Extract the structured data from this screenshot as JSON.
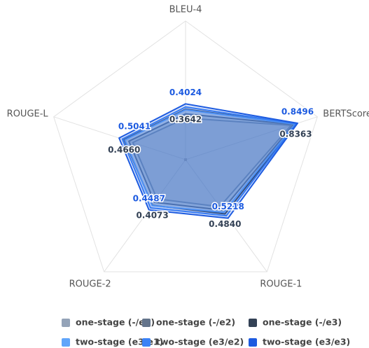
{
  "chart_data": {
    "type": "radar",
    "categories": [
      "BLEU-4",
      "BERTScore",
      "ROUGE-1",
      "ROUGE-2",
      "ROUGE-L"
    ],
    "rlim": [
      0,
      1
    ],
    "series": [
      {
        "name": "one-stage (-/e1)",
        "color": "#94a3b8",
        "values": [
          0.3,
          0.8,
          0.42,
          0.35,
          0.4
        ]
      },
      {
        "name": "one-stage (-/e2)",
        "color": "#64748b",
        "values": [
          0.33,
          0.82,
          0.45,
          0.38,
          0.43
        ]
      },
      {
        "name": "one-stage (-/e3)",
        "color": "#334155",
        "values": [
          0.3642,
          0.8363,
          0.484,
          0.4073,
          0.466
        ],
        "value_labels": [
          "0.3642",
          "0.8363",
          "0.4840",
          "0.4073",
          "0.4660"
        ]
      },
      {
        "name": "two-stage (e3/e1)",
        "color": "#60a5fa",
        "values": [
          0.36,
          0.83,
          0.47,
          0.41,
          0.46
        ]
      },
      {
        "name": "two-stage (e3/e2)",
        "color": "#3b82f6",
        "values": [
          0.38,
          0.84,
          0.5,
          0.43,
          0.48
        ]
      },
      {
        "name": "two-stage (e3/e3)",
        "color": "#1d5be0",
        "values": [
          0.4024,
          0.8496,
          0.5218,
          0.4487,
          0.5041
        ],
        "value_labels": [
          "0.4024",
          "0.8496",
          "0.5218",
          "0.4487",
          "0.5041"
        ]
      }
    ]
  }
}
